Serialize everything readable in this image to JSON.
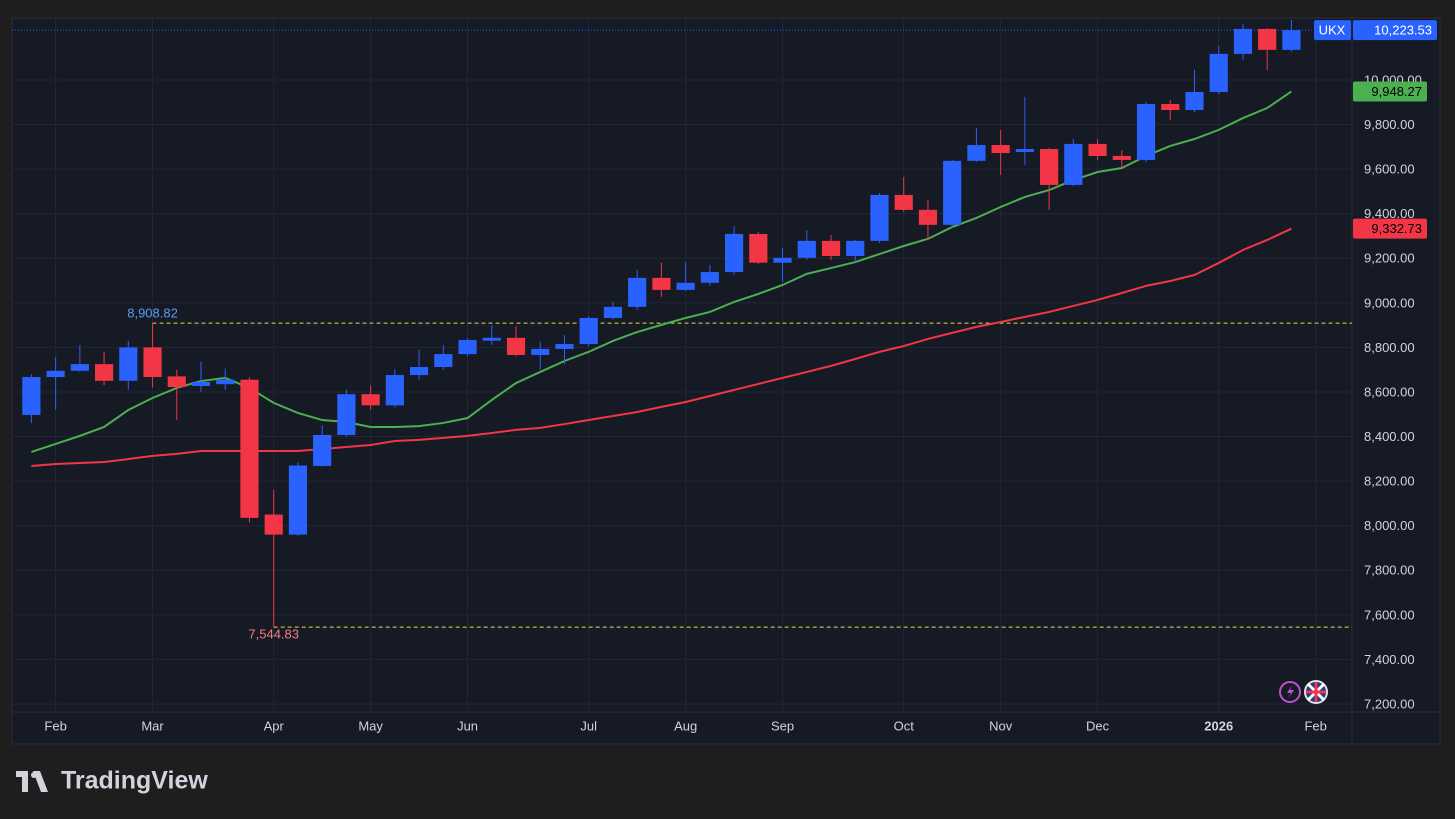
{
  "chart_data": {
    "type": "candlestick",
    "symbol": "UKX",
    "brand": "TradingView",
    "up_color": "#2962ff",
    "down_color": "#f23645",
    "grid": true,
    "xlim": [
      -0.8,
      54.5
    ],
    "ylim": [
      7164,
      10278
    ],
    "yticks": [
      {
        "value": 7200,
        "label": "7,200.00"
      },
      {
        "value": 7400,
        "label": "7,400.00"
      },
      {
        "value": 7600,
        "label": "7,600.00"
      },
      {
        "value": 7800,
        "label": "7,800.00"
      },
      {
        "value": 8000,
        "label": "8,000.00"
      },
      {
        "value": 8200,
        "label": "8,200.00"
      },
      {
        "value": 8400,
        "label": "8,400.00"
      },
      {
        "value": 8600,
        "label": "8,600.00"
      },
      {
        "value": 8800,
        "label": "8,800.00"
      },
      {
        "value": 9000,
        "label": "9,000.00"
      },
      {
        "value": 9200,
        "label": "9,200.00"
      },
      {
        "value": 9400,
        "label": "9,400.00"
      },
      {
        "value": 9600,
        "label": "9,600.00"
      },
      {
        "value": 9800,
        "label": "9,800.00"
      },
      {
        "value": 10000,
        "label": "10,000.00"
      }
    ],
    "xticks": [
      {
        "value": 1,
        "label": "Feb"
      },
      {
        "value": 5,
        "label": "Mar"
      },
      {
        "value": 10,
        "label": "Apr"
      },
      {
        "value": 14,
        "label": "May"
      },
      {
        "value": 18,
        "label": "Jun"
      },
      {
        "value": 23,
        "label": "Jul"
      },
      {
        "value": 27,
        "label": "Aug"
      },
      {
        "value": 31,
        "label": "Sep"
      },
      {
        "value": 36,
        "label": "Oct"
      },
      {
        "value": 40,
        "label": "Nov"
      },
      {
        "value": 44,
        "label": "Dec"
      },
      {
        "value": 49,
        "label": "2026",
        "bold": true
      },
      {
        "value": 53,
        "label": "Feb"
      }
    ],
    "open": [
      8497,
      8667,
      8695,
      8725,
      8650,
      8800,
      8670,
      8627,
      8635,
      8655,
      8050,
      7960,
      8268,
      8407,
      8590,
      8540,
      8676,
      8712,
      8770,
      8830,
      8843,
      8766,
      8793,
      8815,
      8932,
      8982,
      9112,
      9058,
      9090,
      9138,
      9309,
      9180,
      9202,
      9278,
      9210,
      9278,
      9484,
      9417,
      9350,
      9637,
      9708,
      9677,
      9690,
      9529,
      9713,
      9659,
      9641,
      9892,
      9865,
      9946,
      10117,
      10229,
      10135
    ],
    "high": [
      8680,
      8757,
      8810,
      8780,
      8830,
      8908.82,
      8700,
      8735,
      8705,
      8665,
      8160,
      8285,
      8450,
      8610,
      8630,
      8700,
      8790,
      8810,
      8842,
      8900,
      8895,
      8825,
      8855,
      8940,
      9005,
      9148,
      9180,
      9183,
      9170,
      9345,
      9318,
      9246,
      9327,
      9305,
      9282,
      9493,
      9565,
      9462,
      9641,
      9785,
      9775,
      9924,
      9695,
      9735,
      9735,
      9686,
      9901,
      9910,
      10045,
      10153,
      10251,
      10233,
      10269
    ],
    "low": [
      8460,
      8520,
      8690,
      8630,
      8610,
      8620,
      8475,
      8600,
      8610,
      8015,
      7544.83,
      7955,
      8265,
      8400,
      8520,
      8530,
      8655,
      8700,
      8760,
      8812,
      8760,
      8700,
      8725,
      8805,
      8925,
      8968,
      9027,
      9053,
      9076,
      9125,
      9174,
      9094,
      9192,
      9192,
      9183,
      9269,
      9408,
      9282,
      9336,
      9632,
      9574,
      9619,
      9417,
      9524,
      9641,
      9605,
      9632,
      9820,
      9856,
      9937,
      10090,
      10045,
      10126
    ],
    "close": [
      8667,
      8695,
      8725,
      8650,
      8800,
      8667,
      8622,
      8645,
      8655,
      8035,
      7960,
      8270,
      8407,
      8590,
      8540,
      8676,
      8712,
      8770,
      8833,
      8843,
      8766,
      8793,
      8815,
      8932,
      8982,
      9112,
      9058,
      9090,
      9138,
      9309,
      9180,
      9202,
      9278,
      9210,
      9278,
      9484,
      9417,
      9350,
      9637,
      9708,
      9672,
      9690,
      9529,
      9713,
      9659,
      9641,
      9892,
      9865,
      9946,
      10117,
      10229,
      10135,
      10223.53
    ],
    "close_label": "10,223.53",
    "moving_averages": [
      {
        "color": "#4caf50",
        "value_label": "9,948.27",
        "values": [
          8331,
          8367,
          8403,
          8443,
          8519,
          8573,
          8618,
          8649,
          8663,
          8618,
          8551,
          8506,
          8474,
          8465,
          8443,
          8443,
          8447,
          8461,
          8483,
          8564,
          8640,
          8690,
          8739,
          8780,
          8829,
          8869,
          8901,
          8932,
          8959,
          9004,
          9040,
          9080,
          9130,
          9156,
          9183,
          9219,
          9255,
          9287,
          9340,
          9381,
          9430,
          9475,
          9506,
          9551,
          9587,
          9605,
          9659,
          9704,
          9735,
          9776,
          9829,
          9874,
          9948.27
        ]
      },
      {
        "color": "#f23645",
        "value_label": "9,332.73",
        "values": [
          8268,
          8277,
          8281,
          8286,
          8299,
          8313,
          8322,
          8335,
          8335,
          8335,
          8335,
          8335,
          8344,
          8353,
          8362,
          8380,
          8385,
          8394,
          8403,
          8416,
          8430,
          8439,
          8456,
          8474,
          8492,
          8510,
          8533,
          8555,
          8582,
          8609,
          8636,
          8663,
          8690,
          8717,
          8748,
          8780,
          8806,
          8838,
          8865,
          8892,
          8914,
          8937,
          8959,
          8986,
          9013,
          9044,
          9076,
          9098,
          9125,
          9179,
          9237,
          9282,
          9332.73
        ]
      }
    ],
    "hlines": [
      {
        "value": 8908.82,
        "label": "8,908.82",
        "color": "#5b9cf6"
      },
      {
        "value": 7544.83,
        "label": "7,544.83",
        "color": "#f77c80"
      }
    ]
  }
}
